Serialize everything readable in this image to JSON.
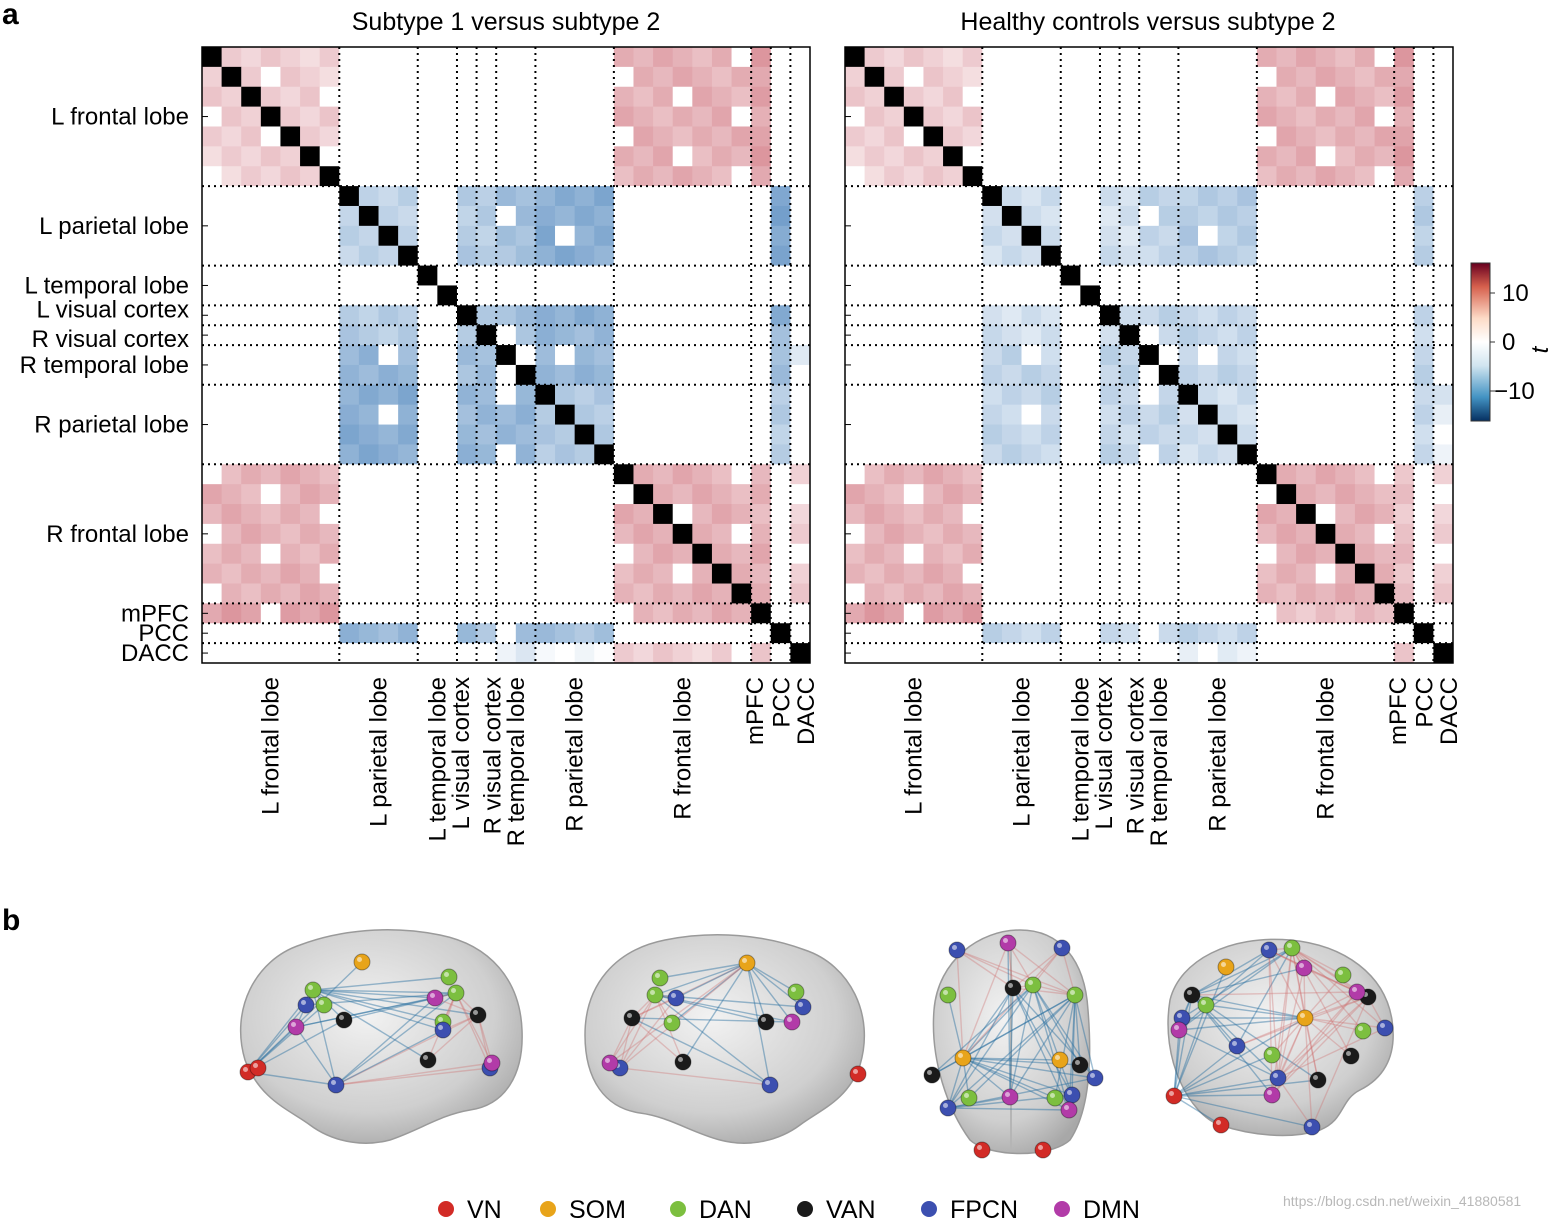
{
  "figure": {
    "panel_a_label": "a",
    "panel_b_label": "b",
    "watermark": "https://blog.csdn.net/weixin_41880581"
  },
  "colorbar": {
    "title": "t",
    "ticks": [
      "10",
      "0",
      "−10"
    ],
    "colors": {
      "high": "#b2182b",
      "mid": "#ffffff",
      "low": "#2166ac"
    }
  },
  "regions": [
    {
      "name": "L frontal lobe",
      "n": 7,
      "row_label": "L frontal lobe",
      "col_label": "L frontal lobe"
    },
    {
      "name": "L parietal lobe",
      "n": 4,
      "row_label": "L parietal lobe",
      "col_label": "L parietal lobe"
    },
    {
      "name": "L temporal lobe",
      "n": 2,
      "row_label": "L temporal lobe",
      "col_label": "L temporal lobe"
    },
    {
      "name": "L visual cortex",
      "n": 1,
      "row_label": "L visual cortex",
      "col_label": "L visual cortex"
    },
    {
      "name": "R visual cortex",
      "n": 1,
      "row_label": "R visual cortex",
      "col_label": "R visual cortex"
    },
    {
      "name": "R temporal lobe",
      "n": 2,
      "row_label": "R temporal lobe",
      "col_label": "R temporal lobe"
    },
    {
      "name": "R parietal lobe",
      "n": 4,
      "row_label": "R parietal lobe",
      "col_label": "R parietal lobe"
    },
    {
      "name": "R frontal lobe",
      "n": 7,
      "row_label": "R frontal lobe",
      "col_label": "R frontal lobe"
    },
    {
      "name": "mPFC",
      "n": 1,
      "row_label": "mPFC",
      "col_label": "mPFC"
    },
    {
      "name": "PCC",
      "n": 1,
      "row_label": "PCC",
      "col_label": "PCC"
    },
    {
      "name": "DACC",
      "n": 1,
      "row_label": "DACC",
      "col_label": "DACC"
    }
  ],
  "chart_data": [
    {
      "type": "heatmap",
      "title": "Subtype 1 versus subtype 2",
      "nodes": 31,
      "value_range": [
        -15,
        15
      ],
      "colorbar_label": "t",
      "block_t": [
        [
          3,
          0,
          0,
          0,
          0,
          0,
          0,
          5,
          6,
          0,
          0
        ],
        [
          0,
          -4,
          0,
          -5,
          -5,
          -6,
          -8,
          0,
          0,
          -9,
          0
        ],
        [
          0,
          0,
          0,
          0,
          0,
          0,
          0,
          0,
          0,
          0,
          0
        ],
        [
          0,
          -5,
          0,
          0,
          -5,
          -6,
          -8,
          0,
          0,
          -8,
          0
        ],
        [
          0,
          -5,
          0,
          -5,
          0,
          -6,
          -7,
          0,
          0,
          -7,
          0
        ],
        [
          0,
          -7,
          0,
          -6,
          -6,
          0,
          -7,
          0,
          0,
          -6,
          -3
        ],
        [
          0,
          -8,
          0,
          -7,
          -7,
          -7,
          -5,
          0,
          0,
          -5,
          0
        ],
        [
          5,
          0,
          0,
          0,
          0,
          0,
          0,
          5,
          5,
          0,
          3
        ],
        [
          6,
          0,
          0,
          0,
          0,
          0,
          0,
          5,
          0,
          0,
          0
        ],
        [
          0,
          -7,
          0,
          -7,
          -6,
          -7,
          -6,
          0,
          0,
          0,
          0
        ],
        [
          0,
          0,
          0,
          0,
          0,
          -2,
          -1,
          3,
          3,
          0,
          0
        ]
      ]
    },
    {
      "type": "heatmap",
      "title": "Healthy controls versus subtype 2",
      "nodes": 31,
      "value_range": [
        -15,
        15
      ],
      "colorbar_label": "t",
      "block_t": [
        [
          3,
          0,
          0,
          0,
          0,
          0,
          0,
          5,
          6,
          0,
          0
        ],
        [
          0,
          -3,
          0,
          -3,
          -3,
          -4,
          -5,
          0,
          0,
          -5,
          0
        ],
        [
          0,
          0,
          0,
          0,
          0,
          0,
          0,
          0,
          0,
          0,
          0
        ],
        [
          0,
          -3,
          0,
          0,
          -3,
          -4,
          -4,
          0,
          0,
          -4,
          0
        ],
        [
          0,
          -3,
          0,
          -3,
          0,
          -4,
          -4,
          0,
          0,
          -4,
          0
        ],
        [
          0,
          -4,
          0,
          -4,
          -4,
          0,
          -4,
          0,
          0,
          -4,
          0
        ],
        [
          0,
          -4,
          0,
          -4,
          -4,
          -4,
          -3,
          0,
          0,
          -4,
          -2
        ],
        [
          5,
          0,
          0,
          0,
          0,
          0,
          0,
          5,
          4,
          0,
          3
        ],
        [
          6,
          0,
          0,
          0,
          0,
          0,
          0,
          4,
          0,
          0,
          3
        ],
        [
          0,
          -4,
          0,
          -4,
          -4,
          -4,
          -4,
          0,
          0,
          0,
          0
        ],
        [
          0,
          0,
          0,
          0,
          0,
          0,
          -2,
          0,
          3,
          0,
          0
        ]
      ]
    }
  ],
  "network_legend": [
    {
      "label": "VN",
      "color": "#d22b26"
    },
    {
      "label": "SOM",
      "color": "#e8a41a"
    },
    {
      "label": "DAN",
      "color": "#7cbf3f"
    },
    {
      "label": "VAN",
      "color": "#1a1a1a"
    },
    {
      "label": "FPCN",
      "color": "#3c4fb0"
    },
    {
      "label": "DMN",
      "color": "#b23ba8"
    }
  ],
  "brain_views": [
    "left-lateral",
    "right-lateral",
    "top",
    "oblique"
  ]
}
